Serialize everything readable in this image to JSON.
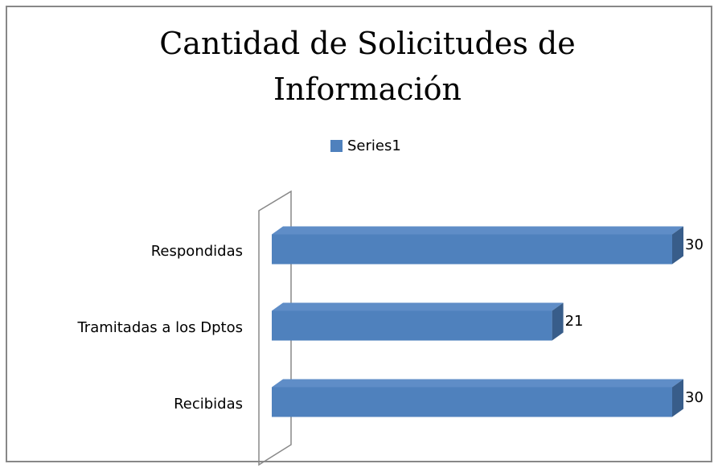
{
  "chart_data": {
    "type": "bar3d",
    "title": "Cantidad de Solicitudes de Información",
    "categories": [
      "Recibidas",
      "Tramitadas a los Dptos",
      "Respondidas"
    ],
    "series": [
      {
        "name": "Series1",
        "color": "#4f81bd",
        "values": [
          30,
          21,
          30
        ]
      }
    ],
    "legend": "top"
  }
}
